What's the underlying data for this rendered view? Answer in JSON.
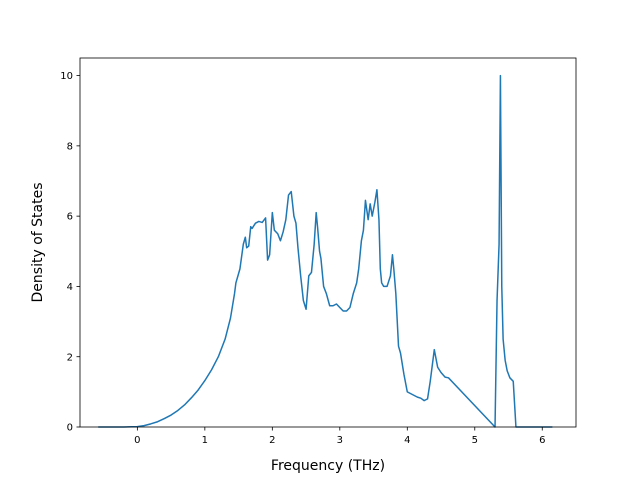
{
  "chart_data": {
    "type": "line",
    "xlabel": "Frequency (THz)",
    "ylabel": "Density of States",
    "xlim": [
      -0.85,
      6.5
    ],
    "ylim": [
      0,
      10.5
    ],
    "xticks": [
      0,
      1,
      2,
      3,
      4,
      5,
      6
    ],
    "yticks": [
      0,
      2,
      4,
      6,
      8,
      10
    ],
    "grid": false,
    "line_color": "#1f77b4",
    "series": [
      {
        "x": [
          -0.58,
          -0.4,
          -0.2,
          0.0,
          0.1,
          0.2,
          0.3,
          0.4,
          0.5,
          0.6,
          0.7,
          0.8,
          0.9,
          1.0,
          1.1,
          1.2,
          1.3,
          1.38,
          1.44,
          1.46,
          1.52,
          1.57,
          1.6,
          1.62,
          1.65,
          1.68,
          1.7,
          1.75,
          1.8,
          1.85,
          1.9,
          1.93,
          1.96,
          2.0,
          2.03,
          2.08,
          2.12,
          2.16,
          2.2,
          2.24,
          2.28,
          2.32,
          2.35,
          2.38,
          2.42,
          2.46,
          2.5,
          2.54,
          2.58,
          2.62,
          2.65,
          2.67,
          2.7,
          2.72,
          2.76,
          2.8,
          2.85,
          2.9,
          2.95,
          3.0,
          3.05,
          3.1,
          3.15,
          3.2,
          3.25,
          3.28,
          3.32,
          3.35,
          3.38,
          3.42,
          3.45,
          3.48,
          3.52,
          3.55,
          3.58,
          3.6,
          3.62,
          3.65,
          3.7,
          3.75,
          3.78,
          3.8,
          3.83,
          3.87,
          3.9,
          3.95,
          4.0,
          4.05,
          4.1,
          4.15,
          4.2,
          4.25,
          4.3,
          4.34,
          4.36,
          4.4,
          4.45,
          4.5,
          4.56,
          4.61,
          5.3,
          5.33,
          5.36,
          5.38,
          5.4,
          5.42,
          5.45,
          5.48,
          5.52,
          5.57,
          5.61,
          5.62,
          6.15
        ],
        "y": [
          0,
          0,
          0,
          0.01,
          0.04,
          0.09,
          0.15,
          0.24,
          0.34,
          0.47,
          0.63,
          0.83,
          1.05,
          1.32,
          1.63,
          2.0,
          2.5,
          3.1,
          3.8,
          4.1,
          4.5,
          5.2,
          5.4,
          5.1,
          5.15,
          5.7,
          5.65,
          5.8,
          5.85,
          5.82,
          5.95,
          4.75,
          4.9,
          6.1,
          5.6,
          5.5,
          5.3,
          5.55,
          5.9,
          6.6,
          6.7,
          6.0,
          5.8,
          5.1,
          4.3,
          3.6,
          3.35,
          4.3,
          4.4,
          5.2,
          6.1,
          5.7,
          5.0,
          4.8,
          4.0,
          3.8,
          3.45,
          3.45,
          3.5,
          3.4,
          3.3,
          3.3,
          3.4,
          3.8,
          4.1,
          4.5,
          5.3,
          5.6,
          6.45,
          5.9,
          6.35,
          6.0,
          6.4,
          6.75,
          5.9,
          4.5,
          4.1,
          4.0,
          4.0,
          4.3,
          4.9,
          4.5,
          3.8,
          2.3,
          2.1,
          1.5,
          1.0,
          0.95,
          0.9,
          0.85,
          0.82,
          0.75,
          0.8,
          1.3,
          1.6,
          2.2,
          1.7,
          1.55,
          1.42,
          1.4,
          0,
          3.6,
          5.2,
          10.0,
          4.0,
          2.5,
          1.9,
          1.6,
          1.4,
          1.3,
          0,
          0,
          0
        ]
      }
    ]
  }
}
